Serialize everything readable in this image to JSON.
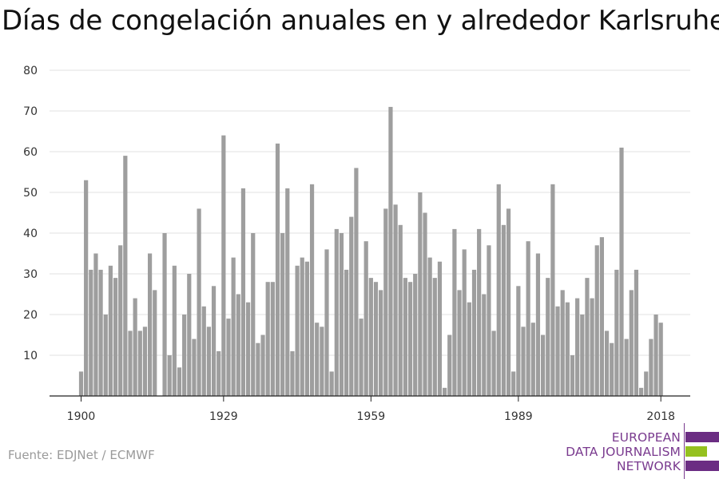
{
  "title": "Días de congelación anuales en y alrededor Karlsruhe",
  "source": "Fuente: EDJNet / ECMWF",
  "logo": {
    "lines": [
      "EUROPEAN",
      "DATA JOURNALISM",
      "NETWORK"
    ],
    "colors": [
      "#6b2d83",
      "#95c11f",
      "#6b2d83"
    ]
  },
  "colors": {
    "bar": "#9e9e9e",
    "grid": "#e0e0e0",
    "axis": "#222222",
    "logo_text": "#7a3b8f"
  },
  "chart_data": {
    "type": "bar",
    "title": "Días de congelación anuales en y alrededor Karlsruhe",
    "xlabel": "",
    "ylabel": "",
    "grid": true,
    "ylim": [
      0,
      80
    ],
    "y_ticks": [
      10,
      20,
      30,
      40,
      50,
      60,
      70,
      80
    ],
    "x_ticks": [
      1900,
      1929,
      1959,
      1989,
      2018
    ],
    "x": [
      1900,
      1901,
      1902,
      1903,
      1904,
      1905,
      1906,
      1907,
      1908,
      1909,
      1910,
      1911,
      1912,
      1913,
      1914,
      1915,
      1916,
      1917,
      1918,
      1919,
      1920,
      1921,
      1922,
      1923,
      1924,
      1925,
      1926,
      1927,
      1928,
      1929,
      1930,
      1931,
      1932,
      1933,
      1934,
      1935,
      1936,
      1937,
      1938,
      1939,
      1940,
      1941,
      1942,
      1943,
      1944,
      1945,
      1946,
      1947,
      1948,
      1949,
      1950,
      1951,
      1952,
      1953,
      1954,
      1955,
      1956,
      1957,
      1958,
      1959,
      1960,
      1961,
      1962,
      1963,
      1964,
      1965,
      1966,
      1967,
      1968,
      1969,
      1970,
      1971,
      1972,
      1973,
      1974,
      1975,
      1976,
      1977,
      1978,
      1979,
      1980,
      1981,
      1982,
      1983,
      1984,
      1985,
      1986,
      1987,
      1988,
      1989,
      1990,
      1991,
      1992,
      1993,
      1994,
      1995,
      1996,
      1997,
      1998,
      1999,
      2000,
      2001,
      2002,
      2003,
      2004,
      2005,
      2006,
      2007,
      2008,
      2009,
      2010,
      2011,
      2012,
      2013,
      2014,
      2015,
      2016,
      2017,
      2018
    ],
    "values": [
      6,
      53,
      31,
      35,
      31,
      20,
      32,
      29,
      37,
      59,
      16,
      24,
      16,
      17,
      35,
      26,
      0,
      40,
      10,
      32,
      7,
      20,
      30,
      14,
      46,
      22,
      17,
      27,
      11,
      64,
      19,
      34,
      25,
      51,
      23,
      40,
      13,
      15,
      28,
      28,
      62,
      40,
      51,
      11,
      32,
      34,
      33,
      52,
      18,
      17,
      36,
      6,
      41,
      40,
      31,
      44,
      56,
      19,
      38,
      29,
      28,
      26,
      46,
      71,
      47,
      42,
      29,
      28,
      30,
      50,
      45,
      34,
      29,
      33,
      2,
      15,
      41,
      26,
      36,
      23,
      31,
      41,
      25,
      37,
      16,
      52,
      42,
      46,
      6,
      27,
      17,
      38,
      18,
      35,
      15,
      29,
      52,
      22,
      26,
      23,
      10,
      24,
      20,
      29,
      24,
      37,
      39,
      16,
      13,
      31,
      61,
      14,
      26,
      31,
      2,
      6,
      14,
      20,
      18
    ]
  }
}
